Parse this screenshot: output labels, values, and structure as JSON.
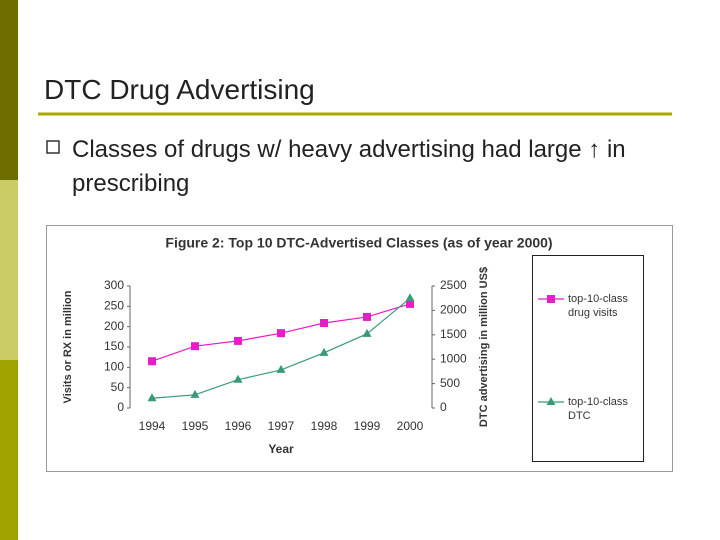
{
  "slide": {
    "title": "DTC Drug Advertising",
    "bullets": [
      "Classes of drugs w/ heavy advertising had large ↑ in prescribing"
    ]
  },
  "chart_data": {
    "type": "line",
    "title": "Figure 2: Top 10 DTC-Advertised Classes (as of year 2000)",
    "x_label": "Year",
    "y_label": "Visits or RX in million",
    "y2_label": "DTC advertising in million US$",
    "categories": [
      "1994",
      "1995",
      "1996",
      "1997",
      "1998",
      "1999",
      "2000"
    ],
    "series": [
      {
        "name": "top-10-class drug visits",
        "color": "#e81cc8",
        "marker": "square",
        "values": [
          115,
          152,
          165,
          184,
          209,
          224,
          256
        ]
      },
      {
        "name": "top-10-class DTC",
        "color": "#3a9a78",
        "marker": "triangle",
        "axis": "y2",
        "values": [
          200,
          270,
          580,
          780,
          1130,
          1520,
          2250
        ]
      }
    ],
    "ylim": [
      0,
      300
    ],
    "yticks": [
      0,
      50,
      100,
      150,
      200,
      250,
      300
    ],
    "y2lim": [
      0,
      2500
    ],
    "y2ticks": [
      0,
      500,
      1000,
      1500,
      2000,
      2500
    ],
    "legend": "right",
    "grid": false
  }
}
